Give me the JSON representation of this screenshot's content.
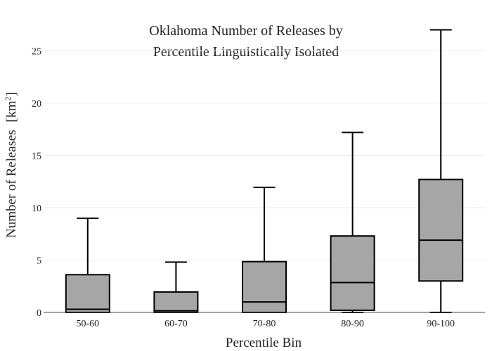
{
  "chart_data": {
    "type": "box",
    "title_lines": [
      "Oklahoma Number of Releases by",
      "Percentile Linguistically Isolated"
    ],
    "xlabel": "Percentile Bin",
    "ylabel": "Number of Releases",
    "ylabel_unit": "[km",
    "ylabel_unit_sup": "2",
    "ylabel_unit_close": "]",
    "ylim": [
      0,
      27.5
    ],
    "yticks": [
      0,
      5,
      10,
      15,
      20,
      25
    ],
    "grid": true,
    "box_color": "#a6a6a6",
    "line_color": "#000000",
    "categories": [
      "50-60",
      "60-70",
      "70-80",
      "80-90",
      "90-100"
    ],
    "boxes": [
      {
        "min": 0,
        "q1": 0,
        "median": 0.3,
        "q3": 3.6,
        "max": 9.0
      },
      {
        "min": 0,
        "q1": 0,
        "median": 0.15,
        "q3": 1.95,
        "max": 4.8
      },
      {
        "min": 0,
        "q1": 0,
        "median": 1.0,
        "q3": 4.85,
        "max": 11.95
      },
      {
        "min": 0,
        "q1": 0.2,
        "median": 2.85,
        "q3": 7.3,
        "max": 17.2
      },
      {
        "min": 0,
        "q1": 3.0,
        "median": 6.9,
        "q3": 12.7,
        "max": 27.0
      }
    ]
  }
}
